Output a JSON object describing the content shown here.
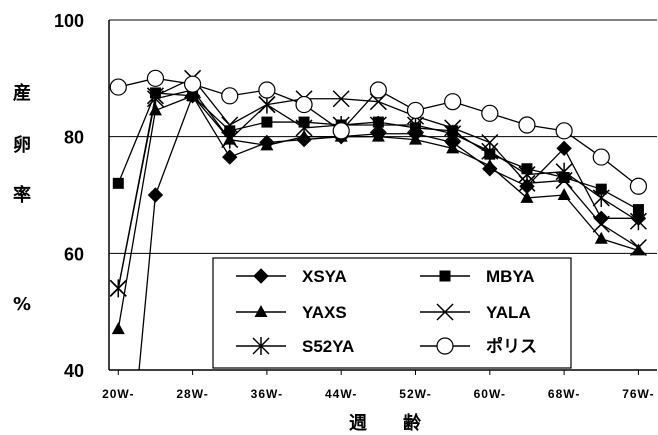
{
  "chart_data": {
    "type": "line",
    "ylabel_chars": [
      "産",
      "卵",
      "率"
    ],
    "ylabel_unit": "%",
    "xlabel": "週　　齢",
    "ylim": [
      40,
      100
    ],
    "yticks": [
      40,
      60,
      80,
      100
    ],
    "xlim": [
      19,
      78
    ],
    "xtick_values": [
      20,
      28,
      36,
      44,
      52,
      60,
      68,
      76
    ],
    "xtick_labels": [
      "20W-",
      "28W-",
      "36W-",
      "44W-",
      "52W-",
      "60W-",
      "68W-",
      "76W-"
    ],
    "grid_y": [
      60,
      80
    ],
    "legend_position": "inside-bottom",
    "series": [
      {
        "name": "XSYA",
        "marker": "diamond",
        "filled": true,
        "points": [
          [
            22,
            36
          ],
          [
            24,
            70
          ],
          [
            28,
            87
          ],
          [
            32,
            76.5
          ],
          [
            36,
            79
          ],
          [
            40,
            79.5
          ],
          [
            44,
            80
          ],
          [
            48,
            80.5
          ],
          [
            52,
            80.5
          ],
          [
            56,
            79
          ],
          [
            60,
            74.5
          ],
          [
            64,
            71.5
          ],
          [
            68,
            78
          ],
          [
            72,
            66
          ],
          [
            76,
            66
          ]
        ]
      },
      {
        "name": "MBYA",
        "marker": "square",
        "filled": true,
        "points": [
          [
            20,
            72
          ],
          [
            24,
            87.5
          ],
          [
            28,
            87
          ],
          [
            32,
            81
          ],
          [
            36,
            82.5
          ],
          [
            40,
            82.5
          ],
          [
            44,
            82
          ],
          [
            48,
            82.5
          ],
          [
            52,
            81.5
          ],
          [
            56,
            81
          ],
          [
            60,
            77
          ],
          [
            64,
            74.5
          ],
          [
            68,
            73
          ],
          [
            72,
            71
          ],
          [
            76,
            67.5
          ]
        ]
      },
      {
        "name": "YAXS",
        "marker": "triangle",
        "filled": true,
        "points": [
          [
            20,
            47
          ],
          [
            24,
            84.5
          ],
          [
            28,
            87
          ],
          [
            32,
            79.5
          ],
          [
            36,
            78.5
          ],
          [
            40,
            80
          ],
          [
            44,
            80
          ],
          [
            48,
            80
          ],
          [
            52,
            79.5
          ],
          [
            56,
            78
          ],
          [
            60,
            75
          ],
          [
            64,
            69.5
          ],
          [
            68,
            70
          ],
          [
            72,
            62.5
          ],
          [
            76,
            60.5
          ]
        ]
      },
      {
        "name": "YALA",
        "marker": "x",
        "filled": false,
        "points": [
          [
            20,
            54
          ],
          [
            24,
            87
          ],
          [
            28,
            90
          ],
          [
            32,
            82
          ],
          [
            36,
            85.5
          ],
          [
            40,
            86.5
          ],
          [
            44,
            86.5
          ],
          [
            48,
            86
          ],
          [
            52,
            83.5
          ],
          [
            56,
            81.5
          ],
          [
            60,
            79
          ],
          [
            64,
            72
          ],
          [
            68,
            72.5
          ],
          [
            72,
            65
          ],
          [
            76,
            61
          ]
        ]
      },
      {
        "name": "S52YA",
        "marker": "asterisk",
        "filled": false,
        "points": [
          [
            20,
            54
          ],
          [
            24,
            86.5
          ],
          [
            28,
            88
          ],
          [
            32,
            79.5
          ],
          [
            36,
            85.5
          ],
          [
            40,
            81.5
          ],
          [
            44,
            82
          ],
          [
            48,
            82
          ],
          [
            52,
            82
          ],
          [
            56,
            80.5
          ],
          [
            60,
            77.5
          ],
          [
            64,
            73.5
          ],
          [
            68,
            74
          ],
          [
            72,
            69.5
          ],
          [
            76,
            65.5
          ]
        ]
      },
      {
        "name": "ポリス",
        "marker": "circle",
        "filled": false,
        "points": [
          [
            20,
            88.5
          ],
          [
            24,
            90
          ],
          [
            28,
            89
          ],
          [
            32,
            87
          ],
          [
            36,
            88
          ],
          [
            40,
            85.5
          ],
          [
            44,
            81
          ],
          [
            48,
            88
          ],
          [
            52,
            84.5
          ],
          [
            56,
            86
          ],
          [
            60,
            84
          ],
          [
            64,
            82
          ],
          [
            68,
            81
          ],
          [
            72,
            76.5
          ],
          [
            76,
            71.5
          ]
        ]
      }
    ]
  }
}
